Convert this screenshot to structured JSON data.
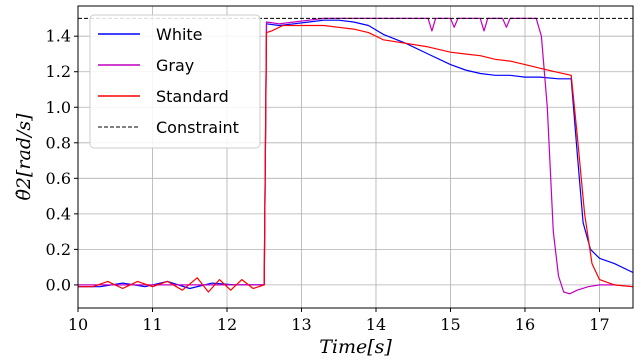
{
  "chart_data": {
    "type": "line",
    "xlabel": "Time[s]",
    "ylabel": "θ̇2[rad/s]",
    "xlim": [
      10,
      17.45
    ],
    "ylim": [
      -0.13,
      1.57
    ],
    "xticks": [
      "10",
      "11",
      "12",
      "13",
      "14",
      "15",
      "16",
      "17"
    ],
    "yticks": [
      "0.0",
      "0.2",
      "0.4",
      "0.6",
      "0.8",
      "1.0",
      "1.2",
      "1.4"
    ],
    "grid": true,
    "legend_position": "top-left",
    "series": [
      {
        "name": "White",
        "color": "#0000ff",
        "points": [
          [
            10.0,
            -0.01
          ],
          [
            10.3,
            -0.01
          ],
          [
            10.6,
            0.01
          ],
          [
            10.9,
            -0.01
          ],
          [
            11.2,
            0.02
          ],
          [
            11.5,
            -0.02
          ],
          [
            11.8,
            0.01
          ],
          [
            12.1,
            0.0
          ],
          [
            12.4,
            0.0
          ],
          [
            12.5,
            0.0
          ],
          [
            12.53,
            1.47
          ],
          [
            12.7,
            1.46
          ],
          [
            12.9,
            1.47
          ],
          [
            13.1,
            1.48
          ],
          [
            13.3,
            1.49
          ],
          [
            13.5,
            1.49
          ],
          [
            13.7,
            1.48
          ],
          [
            13.9,
            1.46
          ],
          [
            14.1,
            1.41
          ],
          [
            14.4,
            1.36
          ],
          [
            14.7,
            1.3
          ],
          [
            15.0,
            1.24
          ],
          [
            15.2,
            1.21
          ],
          [
            15.4,
            1.19
          ],
          [
            15.6,
            1.18
          ],
          [
            15.8,
            1.18
          ],
          [
            16.0,
            1.17
          ],
          [
            16.2,
            1.17
          ],
          [
            16.45,
            1.16
          ],
          [
            16.62,
            1.16
          ],
          [
            16.7,
            0.75
          ],
          [
            16.78,
            0.35
          ],
          [
            16.88,
            0.2
          ],
          [
            17.0,
            0.15
          ],
          [
            17.2,
            0.12
          ],
          [
            17.45,
            0.07
          ]
        ]
      },
      {
        "name": "Gray",
        "color": "#bf00bf",
        "points": [
          [
            10.0,
            0.0
          ],
          [
            10.4,
            0.0
          ],
          [
            10.8,
            0.0
          ],
          [
            11.2,
            0.0
          ],
          [
            11.6,
            0.0
          ],
          [
            12.0,
            0.0
          ],
          [
            12.4,
            0.0
          ],
          [
            12.5,
            0.0
          ],
          [
            12.53,
            1.48
          ],
          [
            12.7,
            1.47
          ],
          [
            12.9,
            1.48
          ],
          [
            13.1,
            1.49
          ],
          [
            13.3,
            1.5
          ],
          [
            13.6,
            1.5
          ],
          [
            14.0,
            1.5
          ],
          [
            14.4,
            1.5
          ],
          [
            14.7,
            1.5
          ],
          [
            14.75,
            1.43
          ],
          [
            14.8,
            1.5
          ],
          [
            15.0,
            1.5
          ],
          [
            15.05,
            1.45
          ],
          [
            15.1,
            1.5
          ],
          [
            15.4,
            1.5
          ],
          [
            15.45,
            1.43
          ],
          [
            15.5,
            1.5
          ],
          [
            15.7,
            1.5
          ],
          [
            15.75,
            1.45
          ],
          [
            15.8,
            1.5
          ],
          [
            16.15,
            1.5
          ],
          [
            16.22,
            1.4
          ],
          [
            16.3,
            1.0
          ],
          [
            16.38,
            0.3
          ],
          [
            16.45,
            0.05
          ],
          [
            16.52,
            -0.04
          ],
          [
            16.6,
            -0.05
          ],
          [
            16.7,
            -0.03
          ],
          [
            16.85,
            -0.01
          ],
          [
            17.0,
            0.0
          ],
          [
            17.2,
            0.0
          ],
          [
            17.45,
            -0.01
          ]
        ]
      },
      {
        "name": "Standard",
        "color": "#ff0000",
        "points": [
          [
            10.0,
            -0.01
          ],
          [
            10.2,
            -0.01
          ],
          [
            10.4,
            0.02
          ],
          [
            10.6,
            -0.02
          ],
          [
            10.8,
            0.02
          ],
          [
            11.0,
            -0.01
          ],
          [
            11.2,
            0.02
          ],
          [
            11.4,
            -0.03
          ],
          [
            11.6,
            0.04
          ],
          [
            11.75,
            -0.04
          ],
          [
            11.9,
            0.03
          ],
          [
            12.05,
            -0.03
          ],
          [
            12.2,
            0.03
          ],
          [
            12.35,
            -0.02
          ],
          [
            12.5,
            0.0
          ],
          [
            12.53,
            1.42
          ],
          [
            12.6,
            1.43
          ],
          [
            12.75,
            1.46
          ],
          [
            12.9,
            1.46
          ],
          [
            13.1,
            1.46
          ],
          [
            13.3,
            1.46
          ],
          [
            13.5,
            1.45
          ],
          [
            13.7,
            1.44
          ],
          [
            13.9,
            1.42
          ],
          [
            14.1,
            1.38
          ],
          [
            14.4,
            1.36
          ],
          [
            14.7,
            1.34
          ],
          [
            15.0,
            1.31
          ],
          [
            15.2,
            1.3
          ],
          [
            15.4,
            1.29
          ],
          [
            15.6,
            1.27
          ],
          [
            15.8,
            1.26
          ],
          [
            16.0,
            1.24
          ],
          [
            16.2,
            1.22
          ],
          [
            16.4,
            1.2
          ],
          [
            16.62,
            1.18
          ],
          [
            16.7,
            0.85
          ],
          [
            16.8,
            0.4
          ],
          [
            16.9,
            0.12
          ],
          [
            17.0,
            0.03
          ],
          [
            17.2,
            0.0
          ],
          [
            17.45,
            -0.01
          ]
        ]
      },
      {
        "name": "Constraint",
        "color": "#000000",
        "dashed": true,
        "points": [
          [
            10.0,
            1.5
          ],
          [
            17.45,
            1.5
          ]
        ]
      }
    ]
  }
}
